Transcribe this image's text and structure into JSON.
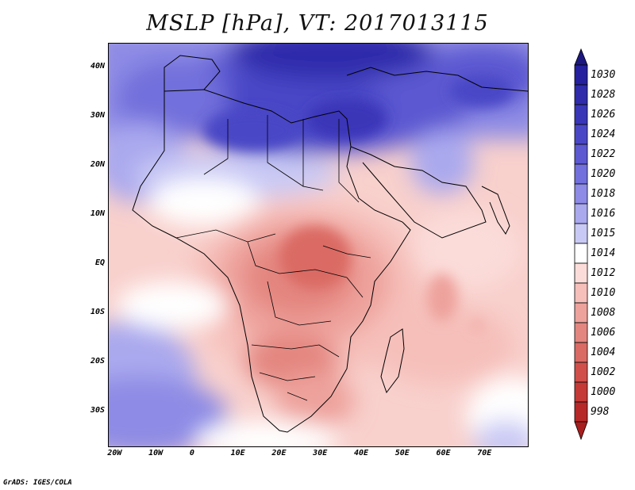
{
  "title": "MSLP [hPa], VT: 2017013115",
  "credit": "GrADS: IGES/COLA",
  "map": {
    "lon_range": [
      -22,
      80
    ],
    "lat_range": [
      -37,
      45
    ],
    "lon_ticks": [
      {
        "value": -20,
        "label": "20W"
      },
      {
        "value": -10,
        "label": "10W"
      },
      {
        "value": 0,
        "label": "0"
      },
      {
        "value": 10,
        "label": "10E"
      },
      {
        "value": 20,
        "label": "20E"
      },
      {
        "value": 30,
        "label": "30E"
      },
      {
        "value": 40,
        "label": "40E"
      },
      {
        "value": 50,
        "label": "50E"
      },
      {
        "value": 60,
        "label": "60E"
      },
      {
        "value": 70,
        "label": "70E"
      }
    ],
    "lat_ticks": [
      {
        "value": 40,
        "label": "40N"
      },
      {
        "value": 30,
        "label": "30N"
      },
      {
        "value": 20,
        "label": "20N"
      },
      {
        "value": 10,
        "label": "10N"
      },
      {
        "value": 0,
        "label": "EQ"
      },
      {
        "value": -10,
        "label": "10S"
      },
      {
        "value": -20,
        "label": "20S"
      },
      {
        "value": -30,
        "label": "30S"
      }
    ]
  },
  "colorbar": {
    "levels": [
      {
        "label": "1030",
        "color": "#24209e"
      },
      {
        "label": "1028",
        "color": "#2f2bab"
      },
      {
        "label": "1026",
        "color": "#3a36b8"
      },
      {
        "label": "1024",
        "color": "#4a47c6"
      },
      {
        "label": "1022",
        "color": "#5c59d1"
      },
      {
        "label": "1020",
        "color": "#7270dc"
      },
      {
        "label": "1018",
        "color": "#8d8be5"
      },
      {
        "label": "1016",
        "color": "#aaa9ee"
      },
      {
        "label": "1015",
        "color": "#c9c9f5"
      },
      {
        "label": "1014",
        "color": "#ffffff"
      },
      {
        "label": "1012",
        "color": "#fbdcd9"
      },
      {
        "label": "1010",
        "color": "#f6bfba"
      },
      {
        "label": "1008",
        "color": "#eea29c"
      },
      {
        "label": "1006",
        "color": "#e48680"
      },
      {
        "label": "1004",
        "color": "#da6a64"
      },
      {
        "label": "1002",
        "color": "#d14f4a"
      },
      {
        "label": "1000",
        "color": "#c53a36"
      },
      {
        "label": "998",
        "color": "#b72828"
      }
    ],
    "top_arrow_color": "#1c1880",
    "bottom_arrow_color": "#a81e1e"
  }
}
